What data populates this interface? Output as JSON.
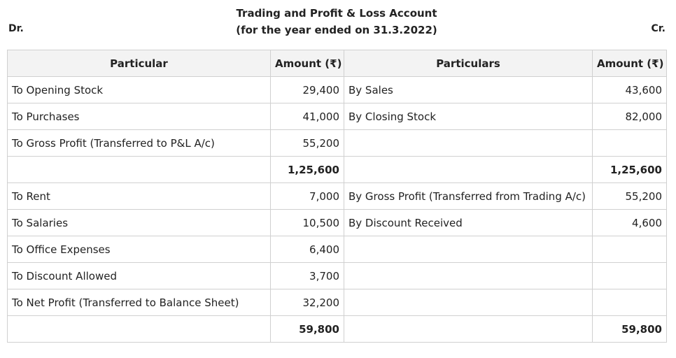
{
  "header": {
    "title_line1": "Trading and Profit & Loss Account",
    "title_line2": "(for the year ended on 31.3.2022)",
    "dr_label": "Dr.",
    "cr_label": "Cr."
  },
  "columns": {
    "debit_particular": "Particular",
    "debit_amount": "Amount (₹)",
    "credit_particular": "Particulars",
    "credit_amount": "Amount (₹)"
  },
  "trading": {
    "rows": [
      {
        "dr_particular": "To Opening Stock",
        "dr_amount": "29,400",
        "cr_particular": "By Sales",
        "cr_amount": "43,600"
      },
      {
        "dr_particular": "To Purchases",
        "dr_amount": "41,000",
        "cr_particular": "By Closing Stock",
        "cr_amount": "82,000"
      },
      {
        "dr_particular": "To Gross Profit (Transferred to P&L A/c)",
        "dr_amount": "55,200",
        "cr_particular": "",
        "cr_amount": ""
      }
    ],
    "total_dr": "1,25,600",
    "total_cr": "1,25,600"
  },
  "profit_loss": {
    "rows": [
      {
        "dr_particular": "To Rent",
        "dr_amount": "7,000",
        "cr_particular": "By Gross Profit  (Transferred from Trading A/c)",
        "cr_amount": "55,200"
      },
      {
        "dr_particular": "To Salaries",
        "dr_amount": "10,500",
        "cr_particular": "By Discount Received",
        "cr_amount": "4,600"
      },
      {
        "dr_particular": "To Office Expenses",
        "dr_amount": "6,400",
        "cr_particular": "",
        "cr_amount": ""
      },
      {
        "dr_particular": "To Discount Allowed",
        "dr_amount": "3,700",
        "cr_particular": "",
        "cr_amount": ""
      },
      {
        "dr_particular": "To Net Profit (Transferred to Balance Sheet)",
        "dr_amount": "32,200",
        "cr_particular": "",
        "cr_amount": ""
      }
    ],
    "total_dr": "59,800",
    "total_cr": "59,800"
  }
}
